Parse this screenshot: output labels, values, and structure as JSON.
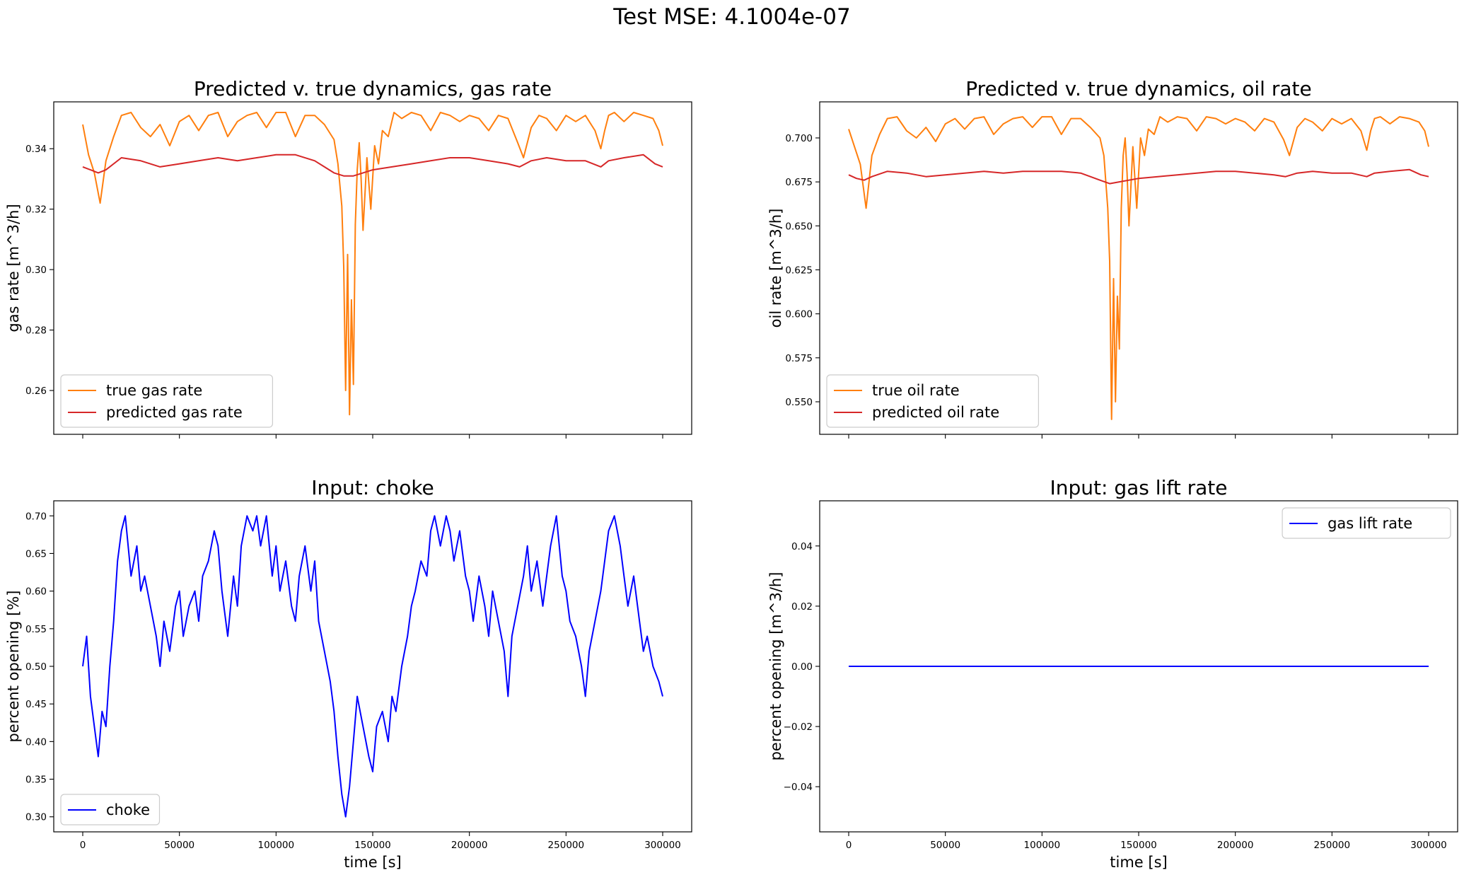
{
  "figure_title": "Test MSE: 4.1004e-07",
  "chart_data": [
    {
      "id": "gas",
      "type": "line",
      "title": "Predicted v. true dynamics, gas rate",
      "xlabel": "",
      "ylabel": "gas rate [m^3/h]",
      "xlim": [
        -15000,
        315000
      ],
      "ylim": [
        0.2455,
        0.3555
      ],
      "xticks": [
        0,
        50000,
        100000,
        150000,
        200000,
        250000,
        300000
      ],
      "xtick_labels": [],
      "yticks": [
        0.26,
        0.28,
        0.3,
        0.32,
        0.34
      ],
      "ytick_labels": [
        "0.26",
        "0.28",
        "0.30",
        "0.32",
        "0.34"
      ],
      "legend_location": "lower left",
      "series": [
        {
          "name": "true gas rate",
          "color": "#ff7f0e",
          "x": [
            0,
            3000,
            6000,
            9000,
            12000,
            16000,
            20000,
            25000,
            30000,
            35000,
            40000,
            45000,
            50000,
            55000,
            60000,
            65000,
            70000,
            75000,
            80000,
            85000,
            90000,
            95000,
            100000,
            105000,
            110000,
            115000,
            120000,
            125000,
            130000,
            132000,
            134000,
            135000,
            136000,
            137000,
            138000,
            139000,
            140000,
            141000,
            142000,
            143000,
            144000,
            145000,
            147000,
            149000,
            151000,
            153000,
            155000,
            158000,
            161000,
            165000,
            170000,
            175000,
            180000,
            185000,
            190000,
            195000,
            200000,
            205000,
            210000,
            215000,
            220000,
            225000,
            228000,
            232000,
            236000,
            240000,
            245000,
            250000,
            255000,
            260000,
            265000,
            268000,
            270000,
            272000,
            275000,
            280000,
            285000,
            290000,
            295000,
            298000,
            300000
          ],
          "values": [
            0.348,
            0.338,
            0.332,
            0.322,
            0.336,
            0.344,
            0.351,
            0.352,
            0.347,
            0.344,
            0.348,
            0.341,
            0.349,
            0.351,
            0.346,
            0.351,
            0.352,
            0.344,
            0.349,
            0.351,
            0.352,
            0.347,
            0.352,
            0.352,
            0.344,
            0.351,
            0.351,
            0.348,
            0.343,
            0.335,
            0.321,
            0.301,
            0.26,
            0.305,
            0.252,
            0.29,
            0.262,
            0.315,
            0.333,
            0.342,
            0.33,
            0.313,
            0.337,
            0.32,
            0.341,
            0.335,
            0.346,
            0.344,
            0.352,
            0.35,
            0.352,
            0.351,
            0.346,
            0.352,
            0.351,
            0.349,
            0.351,
            0.35,
            0.346,
            0.351,
            0.35,
            0.342,
            0.337,
            0.347,
            0.351,
            0.35,
            0.346,
            0.351,
            0.349,
            0.351,
            0.346,
            0.34,
            0.346,
            0.351,
            0.352,
            0.349,
            0.352,
            0.351,
            0.35,
            0.346,
            0.341
          ]
        },
        {
          "name": "predicted gas rate",
          "color": "#d62728",
          "x": [
            0,
            4000,
            8000,
            12000,
            20000,
            30000,
            40000,
            50000,
            60000,
            70000,
            80000,
            90000,
            100000,
            110000,
            120000,
            125000,
            130000,
            135000,
            140000,
            145000,
            150000,
            160000,
            170000,
            180000,
            190000,
            200000,
            210000,
            220000,
            226000,
            232000,
            240000,
            250000,
            260000,
            268000,
            272000,
            280000,
            290000,
            296000,
            300000
          ],
          "values": [
            0.334,
            0.333,
            0.332,
            0.333,
            0.337,
            0.336,
            0.334,
            0.335,
            0.336,
            0.337,
            0.336,
            0.337,
            0.338,
            0.338,
            0.336,
            0.334,
            0.332,
            0.331,
            0.331,
            0.332,
            0.333,
            0.334,
            0.335,
            0.336,
            0.337,
            0.337,
            0.336,
            0.335,
            0.334,
            0.336,
            0.337,
            0.336,
            0.336,
            0.334,
            0.336,
            0.337,
            0.338,
            0.335,
            0.334
          ]
        }
      ]
    },
    {
      "id": "oil",
      "type": "line",
      "title": "Predicted v. true dynamics, oil rate",
      "xlabel": "",
      "ylabel": "oil rate [m^3/h]",
      "xlim": [
        -15000,
        315000
      ],
      "ylim": [
        0.5315,
        0.7205
      ],
      "xticks": [
        0,
        50000,
        100000,
        150000,
        200000,
        250000,
        300000
      ],
      "xtick_labels": [],
      "yticks": [
        0.55,
        0.575,
        0.6,
        0.625,
        0.65,
        0.675,
        0.7
      ],
      "ytick_labels": [
        "0.550",
        "0.575",
        "0.600",
        "0.625",
        "0.650",
        "0.675",
        "0.700"
      ],
      "legend_location": "lower left",
      "series": [
        {
          "name": "true oil rate",
          "color": "#ff7f0e",
          "x": [
            0,
            3000,
            6000,
            9000,
            12000,
            16000,
            20000,
            25000,
            30000,
            35000,
            40000,
            45000,
            50000,
            55000,
            60000,
            65000,
            70000,
            75000,
            80000,
            85000,
            90000,
            95000,
            100000,
            105000,
            110000,
            115000,
            120000,
            125000,
            130000,
            132000,
            134000,
            135000,
            136000,
            137000,
            138000,
            139000,
            140000,
            141000,
            142000,
            143000,
            144000,
            145000,
            147000,
            149000,
            151000,
            153000,
            155000,
            158000,
            161000,
            165000,
            170000,
            175000,
            180000,
            185000,
            190000,
            195000,
            200000,
            205000,
            210000,
            215000,
            220000,
            225000,
            228000,
            232000,
            236000,
            240000,
            245000,
            250000,
            255000,
            260000,
            265000,
            268000,
            270000,
            272000,
            275000,
            280000,
            285000,
            290000,
            295000,
            298000,
            300000
          ],
          "values": [
            0.705,
            0.695,
            0.685,
            0.66,
            0.69,
            0.702,
            0.711,
            0.712,
            0.704,
            0.7,
            0.706,
            0.698,
            0.708,
            0.711,
            0.705,
            0.711,
            0.712,
            0.702,
            0.708,
            0.711,
            0.712,
            0.706,
            0.712,
            0.712,
            0.702,
            0.711,
            0.711,
            0.706,
            0.7,
            0.69,
            0.66,
            0.63,
            0.54,
            0.62,
            0.55,
            0.61,
            0.58,
            0.66,
            0.69,
            0.7,
            0.68,
            0.65,
            0.695,
            0.66,
            0.7,
            0.69,
            0.705,
            0.702,
            0.712,
            0.709,
            0.712,
            0.711,
            0.704,
            0.712,
            0.711,
            0.708,
            0.711,
            0.709,
            0.704,
            0.711,
            0.709,
            0.699,
            0.69,
            0.706,
            0.711,
            0.709,
            0.704,
            0.711,
            0.708,
            0.711,
            0.704,
            0.693,
            0.704,
            0.711,
            0.712,
            0.708,
            0.712,
            0.711,
            0.709,
            0.704,
            0.695
          ]
        },
        {
          "name": "predicted oil rate",
          "color": "#d62728",
          "x": [
            0,
            4000,
            8000,
            12000,
            20000,
            30000,
            40000,
            50000,
            60000,
            70000,
            80000,
            90000,
            100000,
            110000,
            120000,
            125000,
            130000,
            135000,
            140000,
            145000,
            150000,
            160000,
            170000,
            180000,
            190000,
            200000,
            210000,
            220000,
            226000,
            232000,
            240000,
            250000,
            260000,
            268000,
            272000,
            280000,
            290000,
            296000,
            300000
          ],
          "values": [
            0.679,
            0.677,
            0.676,
            0.678,
            0.681,
            0.68,
            0.678,
            0.679,
            0.68,
            0.681,
            0.68,
            0.681,
            0.681,
            0.681,
            0.68,
            0.678,
            0.676,
            0.674,
            0.675,
            0.676,
            0.677,
            0.678,
            0.679,
            0.68,
            0.681,
            0.681,
            0.68,
            0.679,
            0.678,
            0.68,
            0.681,
            0.68,
            0.68,
            0.678,
            0.68,
            0.681,
            0.682,
            0.679,
            0.678
          ]
        }
      ]
    },
    {
      "id": "choke",
      "type": "line",
      "title": "Input: choke",
      "xlabel": "time [s]",
      "ylabel": "percent opening [%]",
      "xlim": [
        -15000,
        315000
      ],
      "ylim": [
        0.28,
        0.72
      ],
      "xticks": [
        0,
        50000,
        100000,
        150000,
        200000,
        250000,
        300000
      ],
      "xtick_labels": [
        "0",
        "50000",
        "100000",
        "150000",
        "200000",
        "250000",
        "300000"
      ],
      "yticks": [
        0.3,
        0.35,
        0.4,
        0.45,
        0.5,
        0.55,
        0.6,
        0.65,
        0.7
      ],
      "ytick_labels": [
        "0.30",
        "0.35",
        "0.40",
        "0.45",
        "0.50",
        "0.55",
        "0.60",
        "0.65",
        "0.70"
      ],
      "legend_location": "lower left",
      "series": [
        {
          "name": "choke",
          "color": "#0000ff",
          "x": [
            0,
            2000,
            4000,
            6000,
            8000,
            10000,
            12000,
            14000,
            16000,
            18000,
            20000,
            22000,
            25000,
            28000,
            30000,
            32000,
            35000,
            38000,
            40000,
            42000,
            45000,
            48000,
            50000,
            52000,
            55000,
            58000,
            60000,
            62000,
            65000,
            68000,
            70000,
            72000,
            75000,
            78000,
            80000,
            82000,
            85000,
            88000,
            90000,
            92000,
            95000,
            98000,
            100000,
            102000,
            105000,
            108000,
            110000,
            112000,
            115000,
            118000,
            120000,
            122000,
            125000,
            128000,
            130000,
            132000,
            134000,
            136000,
            138000,
            140000,
            142000,
            145000,
            148000,
            150000,
            152000,
            155000,
            158000,
            160000,
            162000,
            165000,
            168000,
            170000,
            172000,
            175000,
            178000,
            180000,
            182000,
            185000,
            188000,
            190000,
            192000,
            195000,
            198000,
            200000,
            202000,
            205000,
            208000,
            210000,
            212000,
            215000,
            218000,
            220000,
            222000,
            225000,
            228000,
            230000,
            232000,
            235000,
            238000,
            240000,
            242000,
            245000,
            248000,
            250000,
            252000,
            255000,
            258000,
            260000,
            262000,
            265000,
            268000,
            270000,
            272000,
            275000,
            278000,
            280000,
            282000,
            285000,
            288000,
            290000,
            292000,
            295000,
            298000,
            300000
          ],
          "values": [
            0.5,
            0.54,
            0.46,
            0.42,
            0.38,
            0.44,
            0.42,
            0.5,
            0.56,
            0.64,
            0.68,
            0.7,
            0.62,
            0.66,
            0.6,
            0.62,
            0.58,
            0.54,
            0.5,
            0.56,
            0.52,
            0.58,
            0.6,
            0.54,
            0.58,
            0.6,
            0.56,
            0.62,
            0.64,
            0.68,
            0.66,
            0.6,
            0.54,
            0.62,
            0.58,
            0.66,
            0.7,
            0.68,
            0.7,
            0.66,
            0.7,
            0.62,
            0.66,
            0.6,
            0.64,
            0.58,
            0.56,
            0.62,
            0.66,
            0.6,
            0.64,
            0.56,
            0.52,
            0.48,
            0.44,
            0.38,
            0.33,
            0.3,
            0.34,
            0.4,
            0.46,
            0.42,
            0.38,
            0.36,
            0.42,
            0.44,
            0.4,
            0.46,
            0.44,
            0.5,
            0.54,
            0.58,
            0.6,
            0.64,
            0.62,
            0.68,
            0.7,
            0.66,
            0.7,
            0.68,
            0.64,
            0.68,
            0.62,
            0.6,
            0.56,
            0.62,
            0.58,
            0.54,
            0.6,
            0.56,
            0.52,
            0.46,
            0.54,
            0.58,
            0.62,
            0.66,
            0.6,
            0.64,
            0.58,
            0.62,
            0.66,
            0.7,
            0.62,
            0.6,
            0.56,
            0.54,
            0.5,
            0.46,
            0.52,
            0.56,
            0.6,
            0.64,
            0.68,
            0.7,
            0.66,
            0.62,
            0.58,
            0.62,
            0.56,
            0.52,
            0.54,
            0.5,
            0.48,
            0.46
          ]
        }
      ]
    },
    {
      "id": "gaslift",
      "type": "line",
      "title": "Input: gas lift rate",
      "xlabel": "time [s]",
      "ylabel": "percent opening [m^3/h]",
      "xlim": [
        -15000,
        315000
      ],
      "ylim": [
        -0.055,
        0.055
      ],
      "xticks": [
        0,
        50000,
        100000,
        150000,
        200000,
        250000,
        300000
      ],
      "xtick_labels": [
        "0",
        "50000",
        "100000",
        "150000",
        "200000",
        "250000",
        "300000"
      ],
      "yticks": [
        -0.04,
        -0.02,
        0.0,
        0.02,
        0.04
      ],
      "ytick_labels": [
        "−0.04",
        "−0.02",
        "0.00",
        "0.02",
        "0.04"
      ],
      "legend_location": "upper right",
      "series": [
        {
          "name": "gas lift rate",
          "color": "#0000ff",
          "x": [
            0,
            300000
          ],
          "values": [
            0.0,
            0.0
          ]
        }
      ]
    }
  ]
}
